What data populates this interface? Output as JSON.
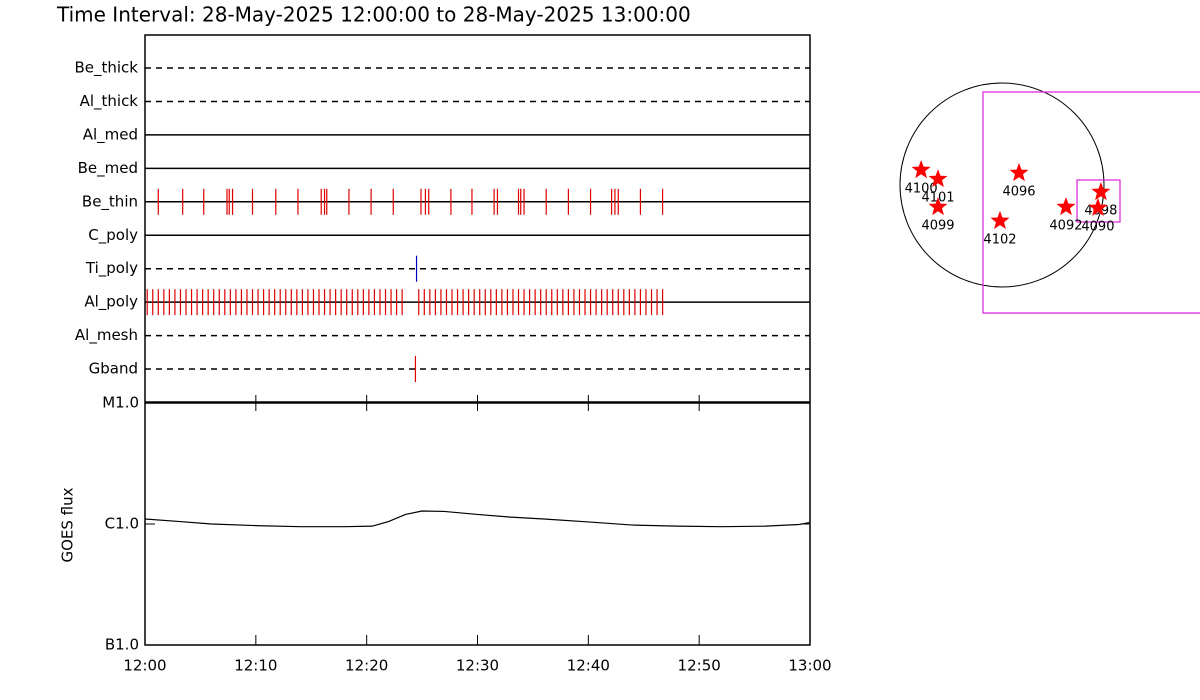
{
  "chart_data": [
    {
      "type": "timeline",
      "title": "Time Interval: 28-May-2025 12:00:00 to 28-May-2025 13:00:00",
      "xlim": [
        0,
        60
      ],
      "rows": [
        {
          "name": "Be_thick",
          "line_style": "dashed",
          "times": []
        },
        {
          "name": "Al_thick",
          "line_style": "dashed",
          "times": []
        },
        {
          "name": "Al_med",
          "line_style": "solid",
          "times": []
        },
        {
          "name": "Be_med",
          "line_style": "solid",
          "times": []
        },
        {
          "name": "Be_thin",
          "line_style": "solid",
          "color": "#e00000",
          "times": [
            1.2,
            3.4,
            5.3,
            7.4,
            7.6,
            7.9,
            9.7,
            11.8,
            13.8,
            15.9,
            16.2,
            16.4,
            18.4,
            20.4,
            22.4,
            24.9,
            25.3,
            25.6,
            27.6,
            29.5,
            31.5,
            31.8,
            33.7,
            33.9,
            34.2,
            36.2,
            38.2,
            40.2,
            42.1,
            42.4,
            42.7,
            44.7,
            46.7
          ]
        },
        {
          "name": "C_poly",
          "line_style": "solid",
          "times": []
        },
        {
          "name": "Ti_poly",
          "line_style": "dashed",
          "color": "#0000c0",
          "times": [
            24.5
          ]
        },
        {
          "name": "Al_poly",
          "line_style": "solid",
          "color": "#e00000",
          "times": [
            0.2,
            0.7,
            1.2,
            1.7,
            2.2,
            2.7,
            3.2,
            3.7,
            4.2,
            4.7,
            5.2,
            5.7,
            6.2,
            6.7,
            7.2,
            7.7,
            8.2,
            8.7,
            9.2,
            9.7,
            10.2,
            10.7,
            11.2,
            11.7,
            12.2,
            12.7,
            13.2,
            13.7,
            14.2,
            14.7,
            15.2,
            15.7,
            16.2,
            16.7,
            17.2,
            17.7,
            18.2,
            18.7,
            19.2,
            19.7,
            20.2,
            20.7,
            21.2,
            21.7,
            22.2,
            22.7,
            23.2,
            24.7,
            25.2,
            25.7,
            26.2,
            26.7,
            27.2,
            27.7,
            28.2,
            28.7,
            29.2,
            29.7,
            30.2,
            30.7,
            31.2,
            31.7,
            32.2,
            32.7,
            33.2,
            33.7,
            34.2,
            34.7,
            35.2,
            35.7,
            36.2,
            36.7,
            37.2,
            37.7,
            38.2,
            38.7,
            39.2,
            39.7,
            40.2,
            40.7,
            41.2,
            41.7,
            42.2,
            42.7,
            43.2,
            43.7,
            44.2,
            44.7,
            45.2,
            45.7,
            46.2,
            46.7
          ]
        },
        {
          "name": "Al_mesh",
          "line_style": "dashed",
          "times": []
        },
        {
          "name": "Gband",
          "line_style": "dashed",
          "color": "#e00000",
          "times": [
            24.4
          ]
        }
      ]
    },
    {
      "type": "line",
      "ylabel": "GOES flux",
      "log_scale": true,
      "color": "#000000",
      "xlim": [
        0,
        60
      ],
      "xticks": [
        {
          "value": 0,
          "label": "12:00"
        },
        {
          "value": 10,
          "label": "12:10"
        },
        {
          "value": 20,
          "label": "12:20"
        },
        {
          "value": 30,
          "label": "12:30"
        },
        {
          "value": 40,
          "label": "12:40"
        },
        {
          "value": 50,
          "label": "12:50"
        },
        {
          "value": 60,
          "label": "13:00"
        }
      ],
      "ylim": [
        1e-07,
        1e-05
      ],
      "yticks": [
        {
          "value": 1e-07,
          "label": "B1.0"
        },
        {
          "value": 1e-06,
          "label": "C1.0"
        },
        {
          "value": 1e-05,
          "label": "M1.0"
        }
      ],
      "x": [
        0,
        3,
        6,
        10,
        14,
        18,
        20.5,
        22,
        23.5,
        25,
        27,
        30,
        33,
        36,
        40,
        44,
        48,
        52,
        56,
        59,
        60
      ],
      "values": [
        1.1e-06,
        1.05e-06,
        1e-06,
        9.7e-07,
        9.5e-07,
        9.5e-07,
        9.6e-07,
        1.05e-06,
        1.2e-06,
        1.28e-06,
        1.27e-06,
        1.2e-06,
        1.14e-06,
        1.1e-06,
        1.04e-06,
        9.8e-07,
        9.6e-07,
        9.5e-07,
        9.6e-07,
        9.9e-07,
        1.03e-06
      ]
    },
    {
      "type": "map",
      "color": "#ff0000",
      "points": [
        {
          "label": "4100",
          "x": -761,
          "y": 141
        },
        {
          "label": "4101",
          "x": -602,
          "y": 56
        },
        {
          "label": "4099",
          "x": -602,
          "y": -207
        },
        {
          "label": "4096",
          "x": 160,
          "y": 113
        },
        {
          "label": "4102",
          "x": -19,
          "y": -338
        },
        {
          "label": "4092",
          "x": 602,
          "y": -207
        },
        {
          "label": "4098",
          "x": 931,
          "y": -66
        },
        {
          "label": "4090",
          "x": 903,
          "y": -216
        }
      ]
    }
  ]
}
